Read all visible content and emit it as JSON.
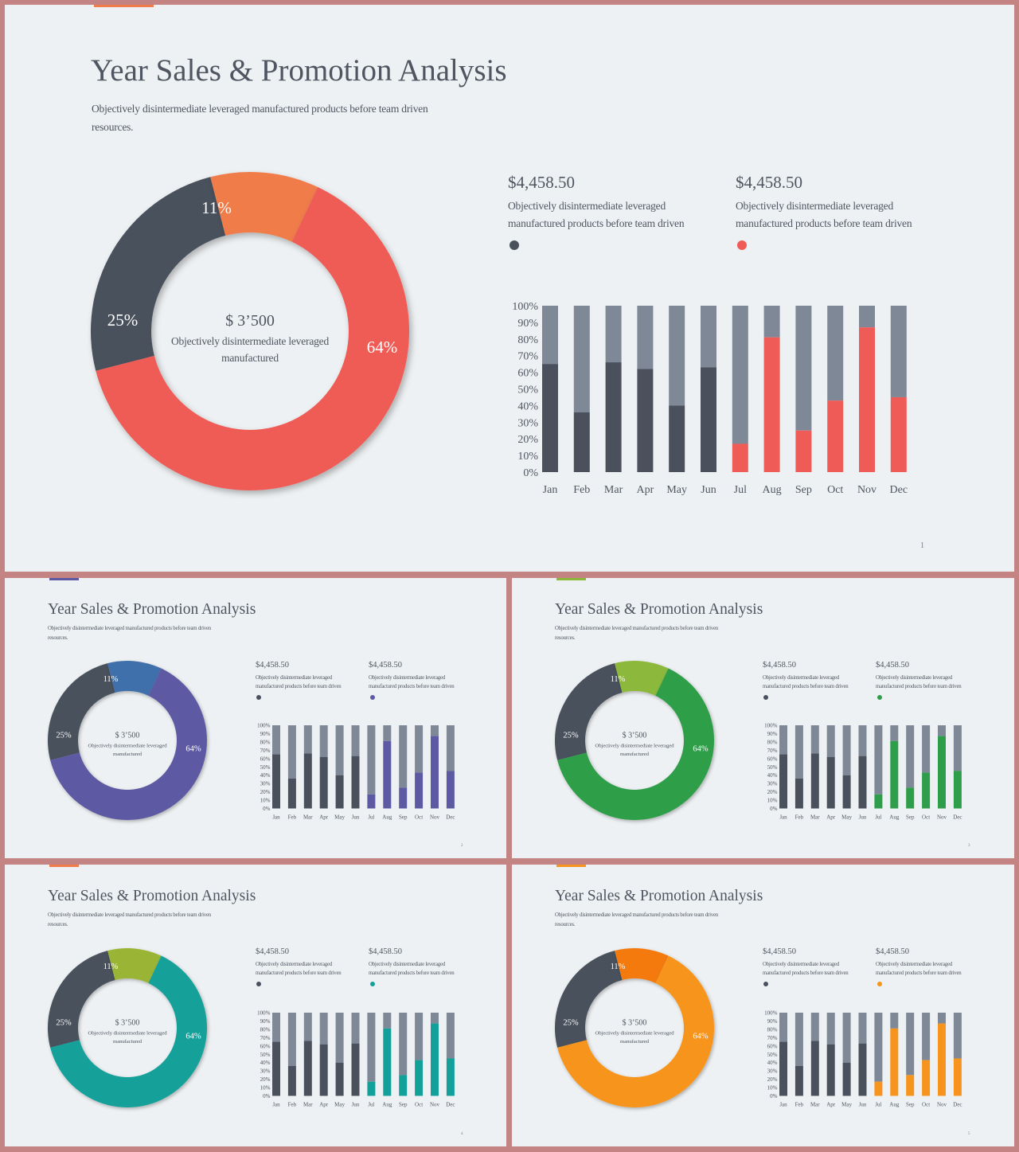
{
  "slides": [
    {
      "title": "Year Sales & Promotion Analysis",
      "subtitle": "Objectively disintermediate leveraged manufactured products before team driven resources.",
      "accent_color": "#f07c4a",
      "page_number": "1",
      "donut": {
        "center_value": "$ 3’500",
        "center_text": "Objectively disintermediate leveraged manufactured",
        "label_dark": "25%",
        "label_small": "11%",
        "label_main": "64%",
        "colors": {
          "dark": "#4a515d",
          "small": "#f07c4a",
          "main": "#ef5b56"
        }
      },
      "stats": [
        {
          "value": "$4,458.50",
          "desc": "Objectively disintermediate leveraged manufactured products before team driven",
          "dot_color": "#4a515d"
        },
        {
          "value": "$4,458.50",
          "desc": "Objectively disintermediate leveraged manufactured products before team driven",
          "dot_color": "#ef5b56"
        }
      ],
      "bar_color": "#ef5b56"
    },
    {
      "title": "Year Sales & Promotion Analysis",
      "subtitle": "Objectively disintermediate leveraged manufactured products before team driven resources.",
      "accent_color": "#5d5aa3",
      "page_number": "2",
      "donut": {
        "center_value": "$ 3’500",
        "center_text": "Objectively disintermediate leveraged manufactured",
        "label_dark": "25%",
        "label_small": "11%",
        "label_main": "64%",
        "colors": {
          "dark": "#4a515d",
          "small": "#3f6fab",
          "main": "#5d5aa3"
        }
      },
      "stats": [
        {
          "value": "$4,458.50",
          "desc": "Objectively disintermediate leveraged manufactured products before team driven",
          "dot_color": "#4a515d"
        },
        {
          "value": "$4,458.50",
          "desc": "Objectively disintermediate leveraged manufactured products before team driven",
          "dot_color": "#5d5aa3"
        }
      ],
      "bar_color": "#5d5aa3"
    },
    {
      "title": "Year Sales & Promotion Analysis",
      "subtitle": "Objectively disintermediate leveraged manufactured products before team driven resources.",
      "accent_color": "#8cb83a",
      "page_number": "3",
      "donut": {
        "center_value": "$ 3’500",
        "center_text": "Objectively disintermediate leveraged manufactured",
        "label_dark": "25%",
        "label_small": "11%",
        "label_main": "64%",
        "colors": {
          "dark": "#4a515d",
          "small": "#8cb83a",
          "main": "#2f9e4a"
        }
      },
      "stats": [
        {
          "value": "$4,458.50",
          "desc": "Objectively disintermediate leveraged manufactured products before team driven",
          "dot_color": "#4a515d"
        },
        {
          "value": "$4,458.50",
          "desc": "Objectively disintermediate leveraged manufactured products before team driven",
          "dot_color": "#2f9e4a"
        }
      ],
      "bar_color": "#2f9e4a"
    },
    {
      "title": "Year Sales & Promotion Analysis",
      "subtitle": "Objectively disintermediate leveraged manufactured products before team driven resources.",
      "accent_color": "#f07c4a",
      "page_number": "4",
      "donut": {
        "center_value": "$ 3’500",
        "center_text": "Objectively disintermediate leveraged manufactured",
        "label_dark": "25%",
        "label_small": "11%",
        "label_main": "64%",
        "colors": {
          "dark": "#4a515d",
          "small": "#9ab536",
          "main": "#14a09a"
        }
      },
      "stats": [
        {
          "value": "$4,458.50",
          "desc": "Objectively disintermediate leveraged manufactured products before team driven",
          "dot_color": "#4a515d"
        },
        {
          "value": "$4,458.50",
          "desc": "Objectively disintermediate leveraged manufactured products before team driven",
          "dot_color": "#14a09a"
        }
      ],
      "bar_color": "#14a09a"
    },
    {
      "title": "Year Sales & Promotion Analysis",
      "subtitle": "Objectively disintermediate leveraged manufactured products before team driven resources.",
      "accent_color": "#f7941d",
      "page_number": "5",
      "donut": {
        "center_value": "$ 3’500",
        "center_text": "Objectively disintermediate leveraged manufactured",
        "label_dark": "25%",
        "label_small": "11%",
        "label_main": "64%",
        "colors": {
          "dark": "#4a515d",
          "small": "#f47a10",
          "main": "#f7941d"
        }
      },
      "stats": [
        {
          "value": "$4,458.50",
          "desc": "Objectively disintermediate leveraged manufactured products before team driven",
          "dot_color": "#4a515d"
        },
        {
          "value": "$4,458.50",
          "desc": "Objectively disintermediate leveraged manufactured products before team driven",
          "dot_color": "#f7941d"
        }
      ],
      "bar_color": "#f7941d"
    }
  ],
  "chart_data": [
    {
      "type": "pie",
      "variant": "donut",
      "labels": [
        "25%",
        "11%",
        "64%"
      ],
      "values": [
        25,
        11,
        64
      ]
    },
    {
      "type": "bar",
      "stacked": true,
      "categories": [
        "Jan",
        "Feb",
        "Mar",
        "Apr",
        "May",
        "Jun",
        "Jul",
        "Aug",
        "Sep",
        "Oct",
        "Nov",
        "Dec"
      ],
      "series": [
        {
          "values": [
            65,
            36,
            66,
            62,
            40,
            63,
            17,
            81,
            25,
            43,
            87,
            45
          ]
        },
        {
          "values": [
            35,
            64,
            34,
            38,
            60,
            37,
            83,
            19,
            75,
            57,
            13,
            55
          ]
        }
      ],
      "highlight_from_index": 6,
      "y_ticks": [
        "0%",
        "10%",
        "20%",
        "30%",
        "40%",
        "50%",
        "60%",
        "70%",
        "80%",
        "90%",
        "100%"
      ],
      "ylim": [
        0,
        100
      ],
      "colors": {
        "base_dark": "#4a515d",
        "remainder": "#7f8896"
      }
    }
  ]
}
